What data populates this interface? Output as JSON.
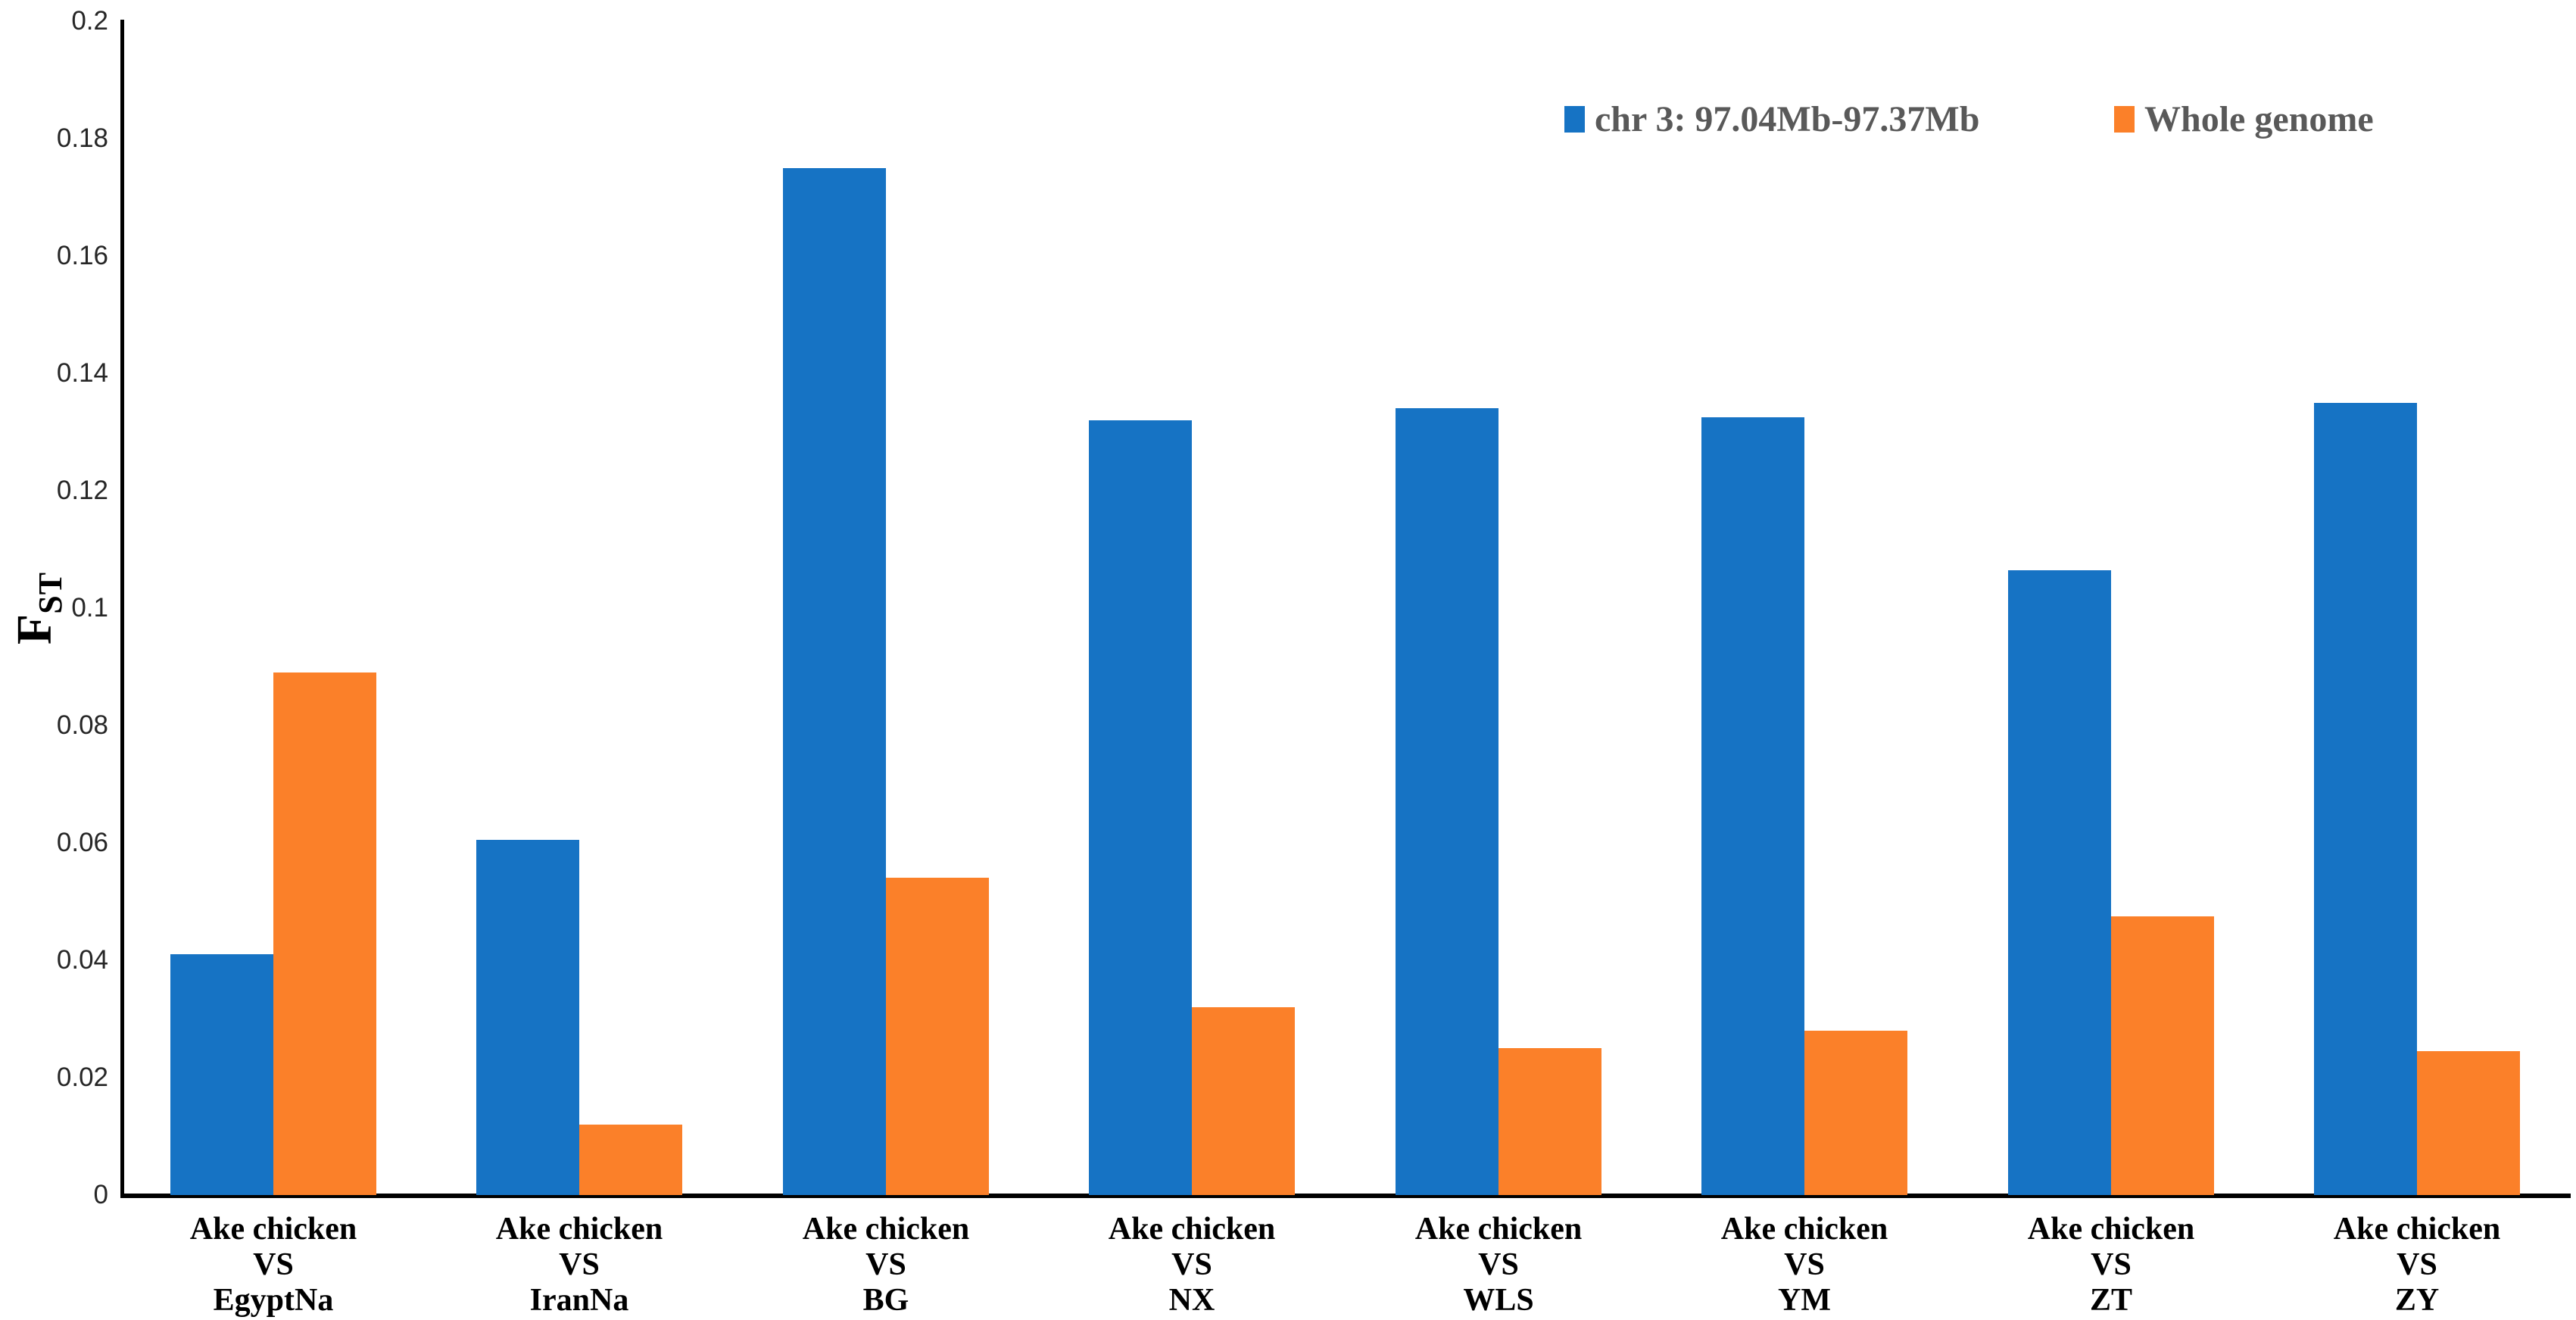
{
  "chart_data": {
    "type": "bar",
    "title": "",
    "ylabel_main": "F",
    "ylabel_sub": "ST",
    "xlabel": "",
    "ylim": [
      0,
      0.2
    ],
    "grid": false,
    "legend_position": "top-right",
    "ytick_labels": [
      "0",
      "0.02",
      "0.04",
      "0.06",
      "0.08",
      "0.1",
      "0.12",
      "0.14",
      "0.16",
      "0.18",
      "0.2"
    ],
    "categories": [
      {
        "lines": [
          "Ake chicken",
          "VS",
          "EgyptNa"
        ]
      },
      {
        "lines": [
          "Ake chicken",
          "VS",
          "IranNa"
        ]
      },
      {
        "lines": [
          "Ake chicken",
          "VS",
          "BG"
        ]
      },
      {
        "lines": [
          "Ake chicken",
          "VS",
          "NX"
        ]
      },
      {
        "lines": [
          "Ake chicken",
          "VS",
          "WLS"
        ]
      },
      {
        "lines": [
          "Ake chicken",
          "VS",
          "YM"
        ]
      },
      {
        "lines": [
          "Ake chicken",
          "VS",
          "ZT"
        ]
      },
      {
        "lines": [
          "Ake chicken",
          "VS",
          "ZY"
        ]
      }
    ],
    "series": [
      {
        "name": "chr 3: 97.04Mb-97.37Mb",
        "color": "#1673C4",
        "values": [
          0.041,
          0.0605,
          0.175,
          0.132,
          0.134,
          0.1325,
          0.1065,
          0.135
        ]
      },
      {
        "name": "Whole genome",
        "color": "#FB8029",
        "values": [
          0.089,
          0.012,
          0.054,
          0.032,
          0.025,
          0.028,
          0.0475,
          0.0245
        ]
      }
    ]
  }
}
